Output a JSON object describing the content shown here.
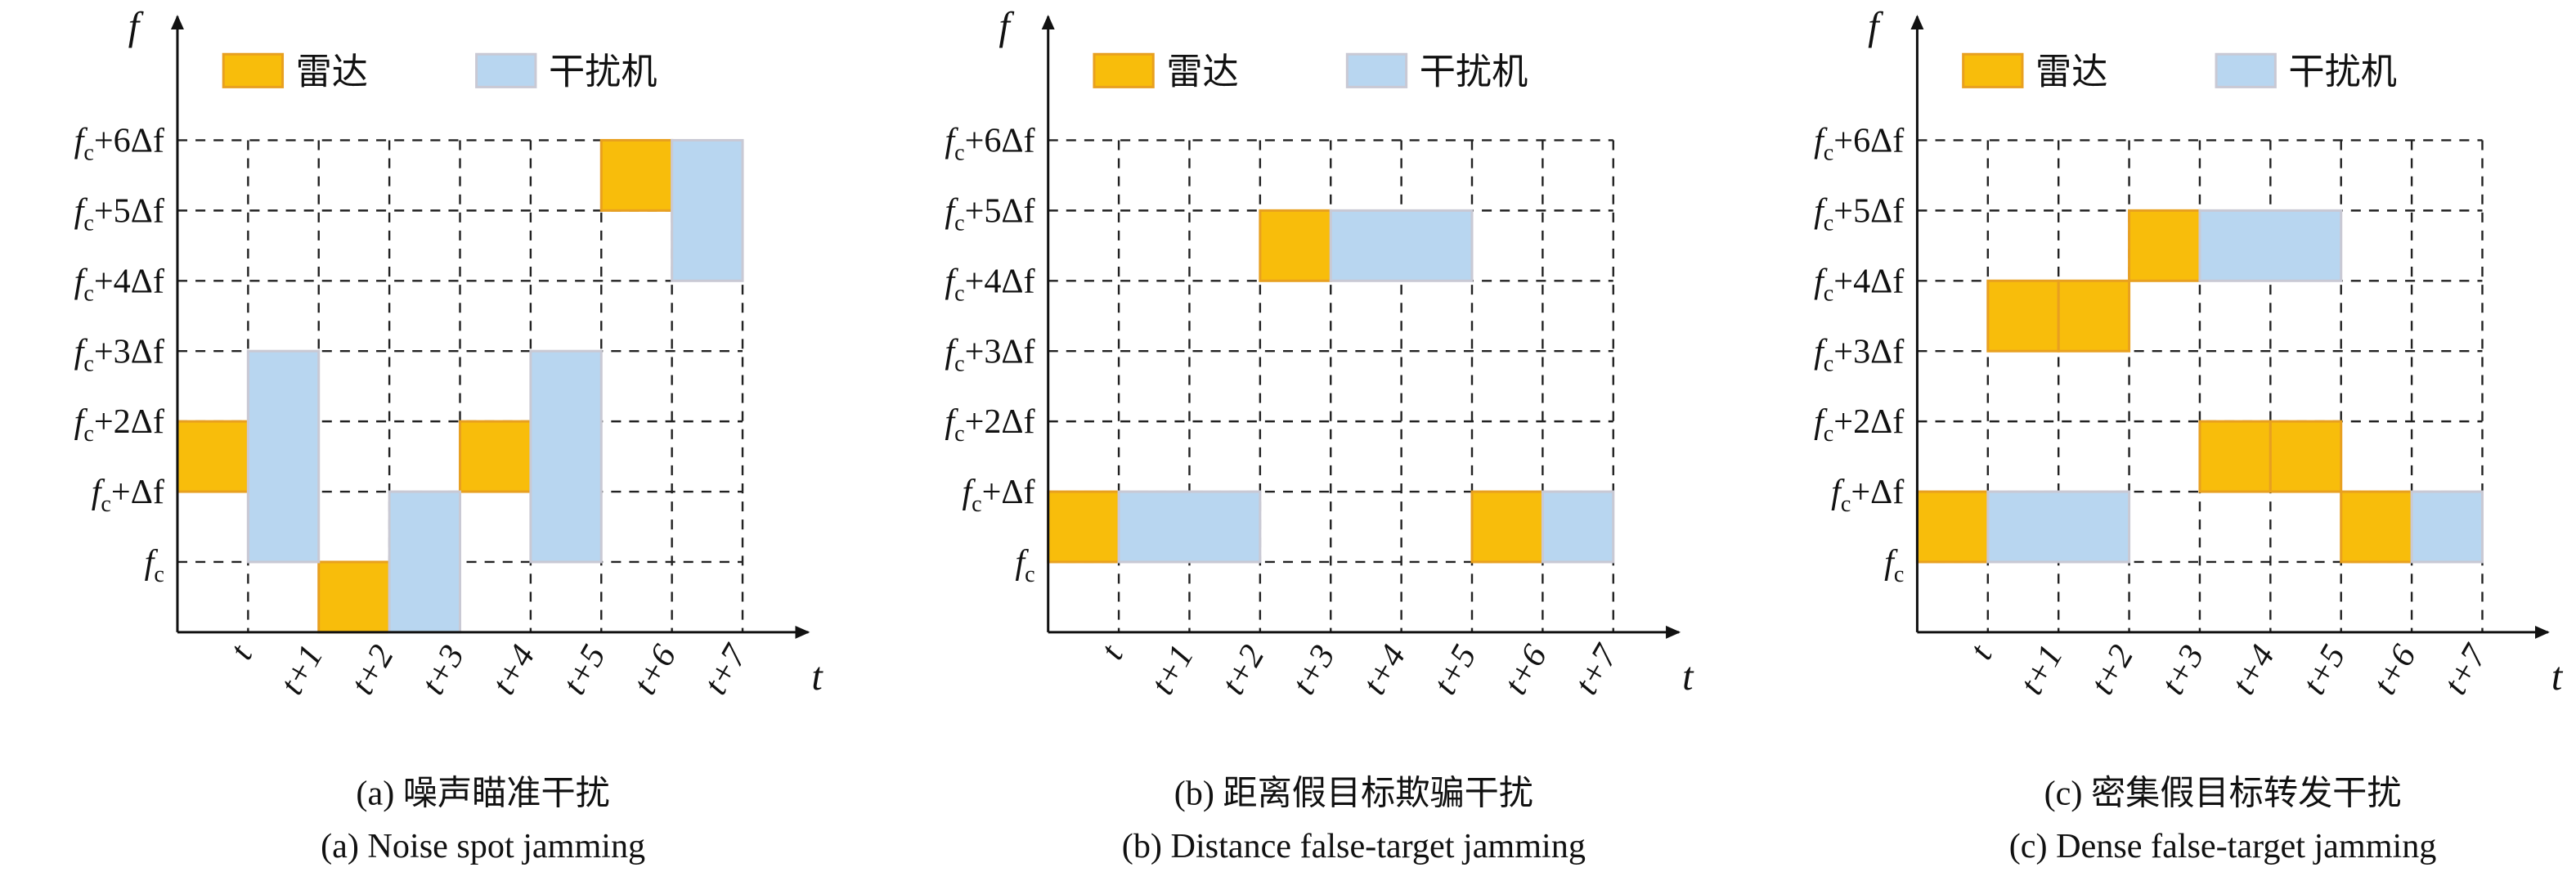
{
  "panels": [
    {
      "y_axis_label": "f",
      "x_axis_label": "t",
      "y_ticks": [
        "fc",
        "fc+Δf",
        "fc+2Δf",
        "fc+3Δf",
        "fc+4Δf",
        "fc+5Δf",
        "fc+6Δf"
      ],
      "x_ticks": [
        "t",
        "t+1",
        "t+2",
        "t+3",
        "t+4",
        "t+5",
        "t+6",
        "t+7"
      ],
      "legend": [
        {
          "label": "雷达",
          "color": "#f8bd0b",
          "blocks": [
            [
              0,
              1,
              2,
              3
            ],
            [
              2,
              3,
              0,
              1
            ],
            [
              4,
              5,
              2,
              3
            ],
            [
              6,
              7,
              6,
              7
            ]
          ]
        },
        {
          "label": "干扰机",
          "color": "#b8d6f0",
          "blocks": [
            [
              1,
              2,
              1,
              4
            ],
            [
              3,
              4,
              0,
              2
            ],
            [
              5,
              6,
              1,
              4
            ],
            [
              7,
              8,
              5,
              7
            ]
          ]
        }
      ],
      "caption_zh": "(a) 噪声瞄准干扰",
      "caption_en": "(a) Noise spot jamming"
    },
    {
      "y_axis_label": "f",
      "x_axis_label": "t",
      "y_ticks": [
        "fc",
        "fc+Δf",
        "fc+2Δf",
        "fc+3Δf",
        "fc+4Δf",
        "fc+5Δf",
        "fc+6Δf"
      ],
      "x_ticks": [
        "t",
        "t+1",
        "t+2",
        "t+3",
        "t+4",
        "t+5",
        "t+6",
        "t+7"
      ],
      "legend": [
        {
          "label": "雷达",
          "color": "#f8bd0b",
          "blocks": [
            [
              0,
              1,
              1,
              2
            ],
            [
              3,
              4,
              5,
              6
            ],
            [
              6,
              7,
              1,
              2
            ]
          ]
        },
        {
          "label": "干扰机",
          "color": "#b8d6f0",
          "blocks": [
            [
              1,
              3,
              1,
              2
            ],
            [
              4,
              6,
              5,
              6
            ],
            [
              7,
              8,
              1,
              2
            ]
          ]
        }
      ],
      "caption_zh": "(b) 距离假目标欺骗干扰",
      "caption_en": "(b) Distance false-target jamming"
    },
    {
      "y_axis_label": "f",
      "x_axis_label": "t",
      "y_ticks": [
        "fc",
        "fc+Δf",
        "fc+2Δf",
        "fc+3Δf",
        "fc+4Δf",
        "fc+5Δf",
        "fc+6Δf"
      ],
      "x_ticks": [
        "t",
        "t+1",
        "t+2",
        "t+3",
        "t+4",
        "t+5",
        "t+6",
        "t+7"
      ],
      "legend": [
        {
          "label": "雷达",
          "color": "#f8bd0b",
          "blocks": [
            [
              0,
              1,
              1,
              2
            ],
            [
              1,
              2,
              4,
              5
            ],
            [
              2,
              3,
              4,
              5
            ],
            [
              3,
              4,
              5,
              6
            ],
            [
              4,
              5,
              2,
              3
            ],
            [
              5,
              6,
              2,
              3
            ],
            [
              6,
              7,
              1,
              2
            ]
          ]
        },
        {
          "label": "干扰机",
          "color": "#b8d6f0",
          "blocks": [
            [
              1,
              3,
              1,
              2
            ],
            [
              4,
              6,
              5,
              6
            ],
            [
              7,
              8,
              1,
              2
            ]
          ]
        }
      ],
      "caption_zh": "(c) 密集假目标转发干扰",
      "caption_en": "(c) Dense false-target jamming"
    }
  ]
}
